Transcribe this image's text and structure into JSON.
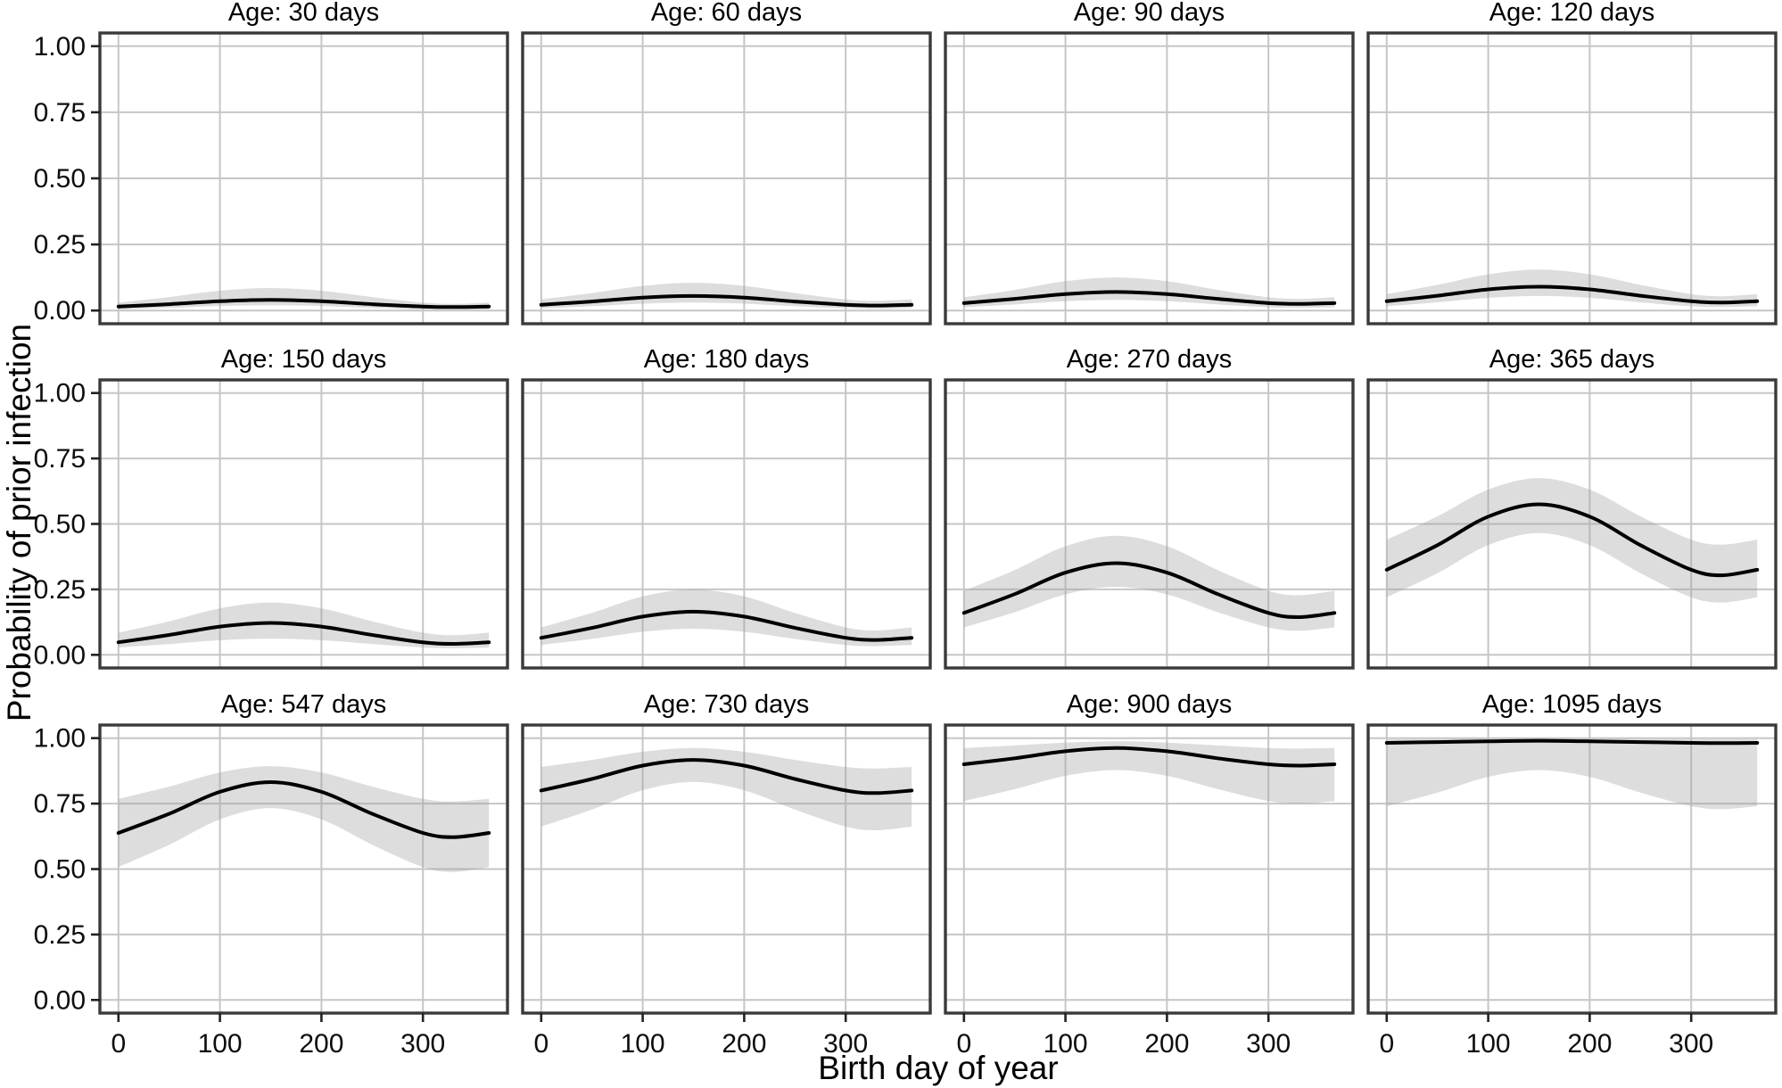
{
  "chart_data": {
    "type": "line",
    "layout": "facet_grid_3x4",
    "xlabel": "Birth day of year",
    "ylabel": "Probability of prior infection",
    "x_ticks": [
      0,
      100,
      200,
      300
    ],
    "y_ticks": [
      1.0,
      0.75,
      0.5,
      0.25,
      0.0
    ],
    "y_tick_labels": [
      "1.00",
      "0.75",
      "0.50",
      "0.25",
      "0.00"
    ],
    "x_tick_labels": [
      "0",
      "100",
      "200",
      "300"
    ],
    "x_range": [
      0,
      365
    ],
    "ylim": [
      0,
      1
    ],
    "grid": true,
    "legend": "none",
    "band_style": "gray confidence band around black mean line",
    "x_days": [
      0,
      50,
      100,
      150,
      200,
      250,
      300,
      330,
      365
    ],
    "facets": [
      {
        "label": "Age: 30 days",
        "age_days": 30,
        "mean": [
          0.015,
          0.024,
          0.035,
          0.04,
          0.035,
          0.024,
          0.015,
          0.013,
          0.015
        ],
        "lower": [
          0.004,
          0.01,
          0.017,
          0.02,
          0.017,
          0.01,
          0.004,
          0.003,
          0.004
        ],
        "upper": [
          0.03,
          0.051,
          0.075,
          0.085,
          0.075,
          0.051,
          0.03,
          0.025,
          0.03
        ]
      },
      {
        "label": "Age: 60 days",
        "age_days": 60,
        "mean": [
          0.022,
          0.034,
          0.049,
          0.055,
          0.049,
          0.034,
          0.022,
          0.019,
          0.022
        ],
        "lower": [
          0.008,
          0.016,
          0.026,
          0.03,
          0.026,
          0.016,
          0.008,
          0.006,
          0.008
        ],
        "upper": [
          0.042,
          0.066,
          0.093,
          0.105,
          0.093,
          0.066,
          0.042,
          0.037,
          0.042
        ]
      },
      {
        "label": "Age: 90 days",
        "age_days": 90,
        "mean": [
          0.028,
          0.044,
          0.062,
          0.07,
          0.062,
          0.044,
          0.028,
          0.025,
          0.028
        ],
        "lower": [
          0.012,
          0.023,
          0.035,
          0.04,
          0.035,
          0.023,
          0.012,
          0.01,
          0.012
        ],
        "upper": [
          0.05,
          0.078,
          0.111,
          0.125,
          0.111,
          0.078,
          0.05,
          0.044,
          0.05
        ]
      },
      {
        "label": "Age: 120 days",
        "age_days": 120,
        "mean": [
          0.035,
          0.056,
          0.08,
          0.09,
          0.08,
          0.056,
          0.035,
          0.03,
          0.035
        ],
        "lower": [
          0.016,
          0.031,
          0.048,
          0.055,
          0.048,
          0.031,
          0.016,
          0.013,
          0.016
        ],
        "upper": [
          0.062,
          0.097,
          0.137,
          0.155,
          0.137,
          0.097,
          0.062,
          0.054,
          0.062
        ]
      },
      {
        "label": "Age: 150 days",
        "age_days": 150,
        "mean": [
          0.048,
          0.076,
          0.108,
          0.122,
          0.108,
          0.076,
          0.048,
          0.042,
          0.048
        ],
        "lower": [
          0.028,
          0.041,
          0.056,
          0.062,
          0.056,
          0.041,
          0.028,
          0.025,
          0.028
        ],
        "upper": [
          0.085,
          0.128,
          0.178,
          0.2,
          0.178,
          0.128,
          0.085,
          0.075,
          0.085
        ]
      },
      {
        "label": "Age: 180 days",
        "age_days": 180,
        "mean": [
          0.065,
          0.103,
          0.146,
          0.165,
          0.146,
          0.103,
          0.065,
          0.057,
          0.065
        ],
        "lower": [
          0.038,
          0.061,
          0.088,
          0.1,
          0.088,
          0.061,
          0.038,
          0.033,
          0.038
        ],
        "upper": [
          0.105,
          0.16,
          0.223,
          0.25,
          0.223,
          0.16,
          0.105,
          0.093,
          0.105
        ]
      },
      {
        "label": "Age: 270 days",
        "age_days": 270,
        "mean": [
          0.16,
          0.232,
          0.314,
          0.35,
          0.314,
          0.232,
          0.16,
          0.144,
          0.16
        ],
        "lower": [
          0.105,
          0.163,
          0.231,
          0.26,
          0.231,
          0.163,
          0.105,
          0.092,
          0.105
        ],
        "upper": [
          0.245,
          0.324,
          0.415,
          0.455,
          0.415,
          0.324,
          0.245,
          0.228,
          0.245
        ]
      },
      {
        "label": "Age: 365 days",
        "age_days": 365,
        "mean": [
          0.325,
          0.419,
          0.528,
          0.575,
          0.528,
          0.419,
          0.325,
          0.304,
          0.325
        ],
        "lower": [
          0.22,
          0.312,
          0.419,
          0.465,
          0.419,
          0.312,
          0.22,
          0.2,
          0.22
        ],
        "upper": [
          0.44,
          0.529,
          0.631,
          0.675,
          0.631,
          0.529,
          0.44,
          0.421,
          0.44
        ]
      },
      {
        "label": "Age: 547 days",
        "age_days": 547,
        "mean": [
          0.638,
          0.711,
          0.795,
          0.832,
          0.795,
          0.711,
          0.638,
          0.622,
          0.638
        ],
        "lower": [
          0.508,
          0.593,
          0.69,
          0.733,
          0.69,
          0.593,
          0.508,
          0.489,
          0.508
        ],
        "upper": [
          0.768,
          0.815,
          0.869,
          0.893,
          0.869,
          0.815,
          0.768,
          0.758,
          0.768
        ]
      },
      {
        "label": "Age: 730 days",
        "age_days": 730,
        "mean": [
          0.8,
          0.844,
          0.895,
          0.917,
          0.895,
          0.844,
          0.8,
          0.79,
          0.8
        ],
        "lower": [
          0.662,
          0.727,
          0.801,
          0.833,
          0.801,
          0.727,
          0.662,
          0.648,
          0.662
        ],
        "upper": [
          0.89,
          0.917,
          0.948,
          0.962,
          0.948,
          0.917,
          0.89,
          0.884,
          0.89
        ]
      },
      {
        "label": "Age: 900 days",
        "age_days": 900,
        "mean": [
          0.9,
          0.923,
          0.95,
          0.962,
          0.95,
          0.923,
          0.9,
          0.895,
          0.9
        ],
        "lower": [
          0.76,
          0.805,
          0.856,
          0.878,
          0.856,
          0.805,
          0.76,
          0.75,
          0.76
        ],
        "upper": [
          0.962,
          0.972,
          0.983,
          0.988,
          0.983,
          0.972,
          0.962,
          0.96,
          0.962
        ]
      },
      {
        "label": "Age: 1095 days",
        "age_days": 1095,
        "mean": [
          0.982,
          0.985,
          0.988,
          0.99,
          0.988,
          0.985,
          0.982,
          0.981,
          0.982
        ],
        "lower": [
          0.74,
          0.792,
          0.852,
          0.878,
          0.852,
          0.792,
          0.74,
          0.729,
          0.74
        ],
        "upper": [
          0.995,
          0.996,
          0.997,
          0.997,
          0.997,
          0.996,
          0.995,
          0.995,
          0.995
        ]
      }
    ],
    "colors": {
      "line": "#000000",
      "band": "#9e9e9e",
      "grid": "#c6c6c6",
      "border": "#3a3a3a",
      "tick": "#222222",
      "background": "#ffffff"
    }
  }
}
